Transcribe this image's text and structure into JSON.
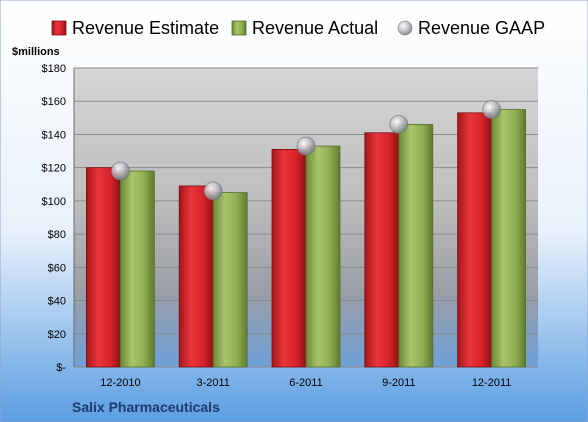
{
  "chart_data": {
    "type": "bar",
    "title": "",
    "unit_label": "$millions",
    "footer": "Salix Pharmaceuticals",
    "categories": [
      "12-2010",
      "3-2011",
      "6-2011",
      "9-2011",
      "12-2011"
    ],
    "series": [
      {
        "name": "Revenue Estimate",
        "type": "bar",
        "color": "#d8232a",
        "values": [
          120,
          109,
          131,
          141,
          153
        ]
      },
      {
        "name": "Revenue Actual",
        "type": "bar",
        "color": "#8fae52",
        "values": [
          118,
          105,
          133,
          146,
          155
        ]
      },
      {
        "name": "Revenue GAAP",
        "type": "marker",
        "color": "#b8b8c0",
        "values": [
          118,
          106,
          133,
          146,
          155
        ]
      }
    ],
    "ylim": [
      0,
      180
    ],
    "yticks": [
      0,
      20,
      40,
      60,
      80,
      100,
      120,
      140,
      160,
      180
    ],
    "ytick_labels": [
      "$-",
      "$20",
      "$40",
      "$60",
      "$80",
      "$100",
      "$120",
      "$140",
      "$160",
      "$180"
    ],
    "grid": true,
    "legend_position": "top"
  }
}
